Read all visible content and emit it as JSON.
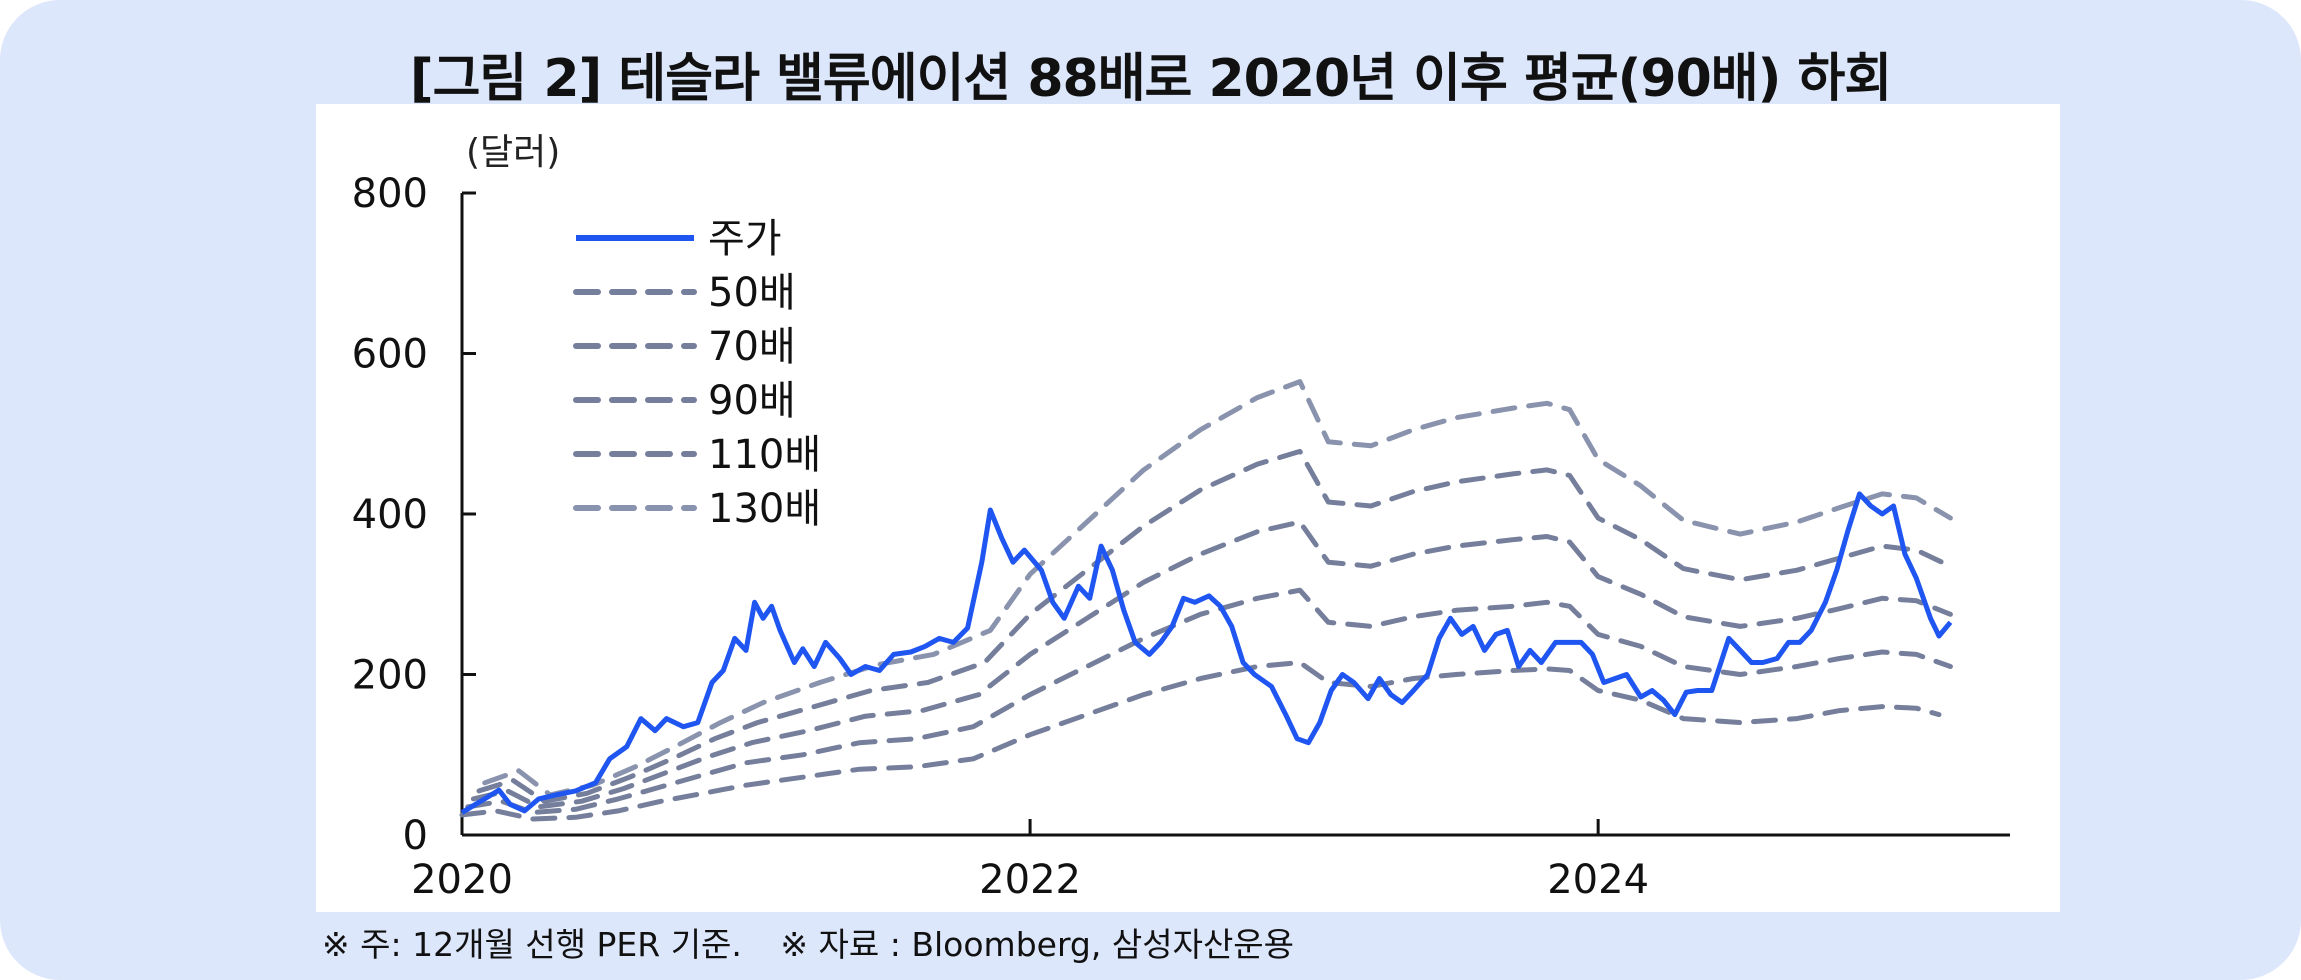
{
  "title": "[그림 2] 테슬라 밸류에이션 88배로 2020년 이후 평균(90배) 하회",
  "footnote": "※ 주: 12개월 선행 PER 기준.",
  "source": "※ 자료 : Bloomberg, 삼성자산운용",
  "chart_data": {
    "type": "line",
    "unit_label": "(달러)",
    "ylim": [
      0,
      800
    ],
    "yticks": [
      0,
      200,
      400,
      600,
      800
    ],
    "xlim": [
      2020,
      2025.45
    ],
    "xticks": [
      2020,
      2022,
      2024
    ],
    "legend_placement": "top-left",
    "series": [
      {
        "name": "주가",
        "style": "solid",
        "color": "#1f55f0",
        "points": [
          [
            2020.0,
            28
          ],
          [
            2020.08,
            45
          ],
          [
            2020.13,
            56
          ],
          [
            2020.17,
            38
          ],
          [
            2020.22,
            30
          ],
          [
            2020.27,
            45
          ],
          [
            2020.33,
            50
          ],
          [
            2020.4,
            55
          ],
          [
            2020.47,
            65
          ],
          [
            2020.52,
            95
          ],
          [
            2020.58,
            110
          ],
          [
            2020.63,
            145
          ],
          [
            2020.68,
            130
          ],
          [
            2020.72,
            145
          ],
          [
            2020.78,
            135
          ],
          [
            2020.83,
            140
          ],
          [
            2020.88,
            190
          ],
          [
            2020.92,
            205
          ],
          [
            2020.96,
            245
          ],
          [
            2021.0,
            230
          ],
          [
            2021.03,
            290
          ],
          [
            2021.06,
            270
          ],
          [
            2021.09,
            285
          ],
          [
            2021.12,
            255
          ],
          [
            2021.17,
            215
          ],
          [
            2021.2,
            232
          ],
          [
            2021.24,
            210
          ],
          [
            2021.28,
            240
          ],
          [
            2021.33,
            220
          ],
          [
            2021.37,
            200
          ],
          [
            2021.42,
            210
          ],
          [
            2021.47,
            205
          ],
          [
            2021.52,
            225
          ],
          [
            2021.58,
            228
          ],
          [
            2021.63,
            235
          ],
          [
            2021.68,
            245
          ],
          [
            2021.73,
            240
          ],
          [
            2021.78,
            258
          ],
          [
            2021.83,
            340
          ],
          [
            2021.86,
            405
          ],
          [
            2021.9,
            370
          ],
          [
            2021.94,
            340
          ],
          [
            2021.98,
            355
          ],
          [
            2022.04,
            330
          ],
          [
            2022.08,
            290
          ],
          [
            2022.12,
            270
          ],
          [
            2022.17,
            310
          ],
          [
            2022.21,
            295
          ],
          [
            2022.25,
            360
          ],
          [
            2022.29,
            330
          ],
          [
            2022.33,
            280
          ],
          [
            2022.37,
            240
          ],
          [
            2022.42,
            225
          ],
          [
            2022.46,
            240
          ],
          [
            2022.5,
            260
          ],
          [
            2022.54,
            295
          ],
          [
            2022.58,
            290
          ],
          [
            2022.63,
            298
          ],
          [
            2022.67,
            285
          ],
          [
            2022.71,
            260
          ],
          [
            2022.75,
            215
          ],
          [
            2022.79,
            200
          ],
          [
            2022.85,
            185
          ],
          [
            2022.9,
            150
          ],
          [
            2022.94,
            120
          ],
          [
            2022.98,
            115
          ],
          [
            2023.02,
            140
          ],
          [
            2023.06,
            180
          ],
          [
            2023.1,
            200
          ],
          [
            2023.14,
            190
          ],
          [
            2023.19,
            170
          ],
          [
            2023.23,
            195
          ],
          [
            2023.27,
            175
          ],
          [
            2023.31,
            165
          ],
          [
            2023.35,
            180
          ],
          [
            2023.4,
            200
          ],
          [
            2023.44,
            245
          ],
          [
            2023.48,
            270
          ],
          [
            2023.52,
            250
          ],
          [
            2023.56,
            260
          ],
          [
            2023.6,
            230
          ],
          [
            2023.64,
            250
          ],
          [
            2023.68,
            255
          ],
          [
            2023.72,
            210
          ],
          [
            2023.76,
            230
          ],
          [
            2023.8,
            215
          ],
          [
            2023.85,
            240
          ],
          [
            2023.9,
            240
          ],
          [
            2023.94,
            240
          ],
          [
            2023.98,
            225
          ],
          [
            2024.02,
            190
          ],
          [
            2024.06,
            195
          ],
          [
            2024.1,
            200
          ],
          [
            2024.15,
            172
          ],
          [
            2024.19,
            180
          ],
          [
            2024.23,
            168
          ],
          [
            2024.27,
            150
          ],
          [
            2024.31,
            178
          ],
          [
            2024.35,
            180
          ],
          [
            2024.4,
            180
          ],
          [
            2024.46,
            245
          ],
          [
            2024.5,
            230
          ],
          [
            2024.54,
            215
          ],
          [
            2024.58,
            215
          ],
          [
            2024.63,
            220
          ],
          [
            2024.67,
            240
          ],
          [
            2024.71,
            240
          ],
          [
            2024.75,
            255
          ],
          [
            2024.8,
            290
          ],
          [
            2024.84,
            330
          ],
          [
            2024.88,
            380
          ],
          [
            2024.92,
            425
          ],
          [
            2024.96,
            410
          ],
          [
            2025.0,
            400
          ],
          [
            2025.04,
            410
          ],
          [
            2025.08,
            350
          ],
          [
            2025.12,
            320
          ],
          [
            2025.17,
            270
          ],
          [
            2025.2,
            248
          ],
          [
            2025.24,
            265
          ]
        ]
      },
      {
        "name": "50배",
        "style": "dashed",
        "color": "#757f9c",
        "points": [
          [
            2020.0,
            25
          ],
          [
            2020.12,
            30
          ],
          [
            2020.25,
            20
          ],
          [
            2020.4,
            22
          ],
          [
            2020.55,
            30
          ],
          [
            2020.7,
            42
          ],
          [
            2020.85,
            52
          ],
          [
            2021.0,
            62
          ],
          [
            2021.2,
            72
          ],
          [
            2021.4,
            82
          ],
          [
            2021.6,
            85
          ],
          [
            2021.8,
            95
          ],
          [
            2022.0,
            125
          ],
          [
            2022.2,
            150
          ],
          [
            2022.4,
            175
          ],
          [
            2022.6,
            195
          ],
          [
            2022.8,
            210
          ],
          [
            2022.95,
            215
          ],
          [
            2023.05,
            190
          ],
          [
            2023.2,
            185
          ],
          [
            2023.35,
            195
          ],
          [
            2023.5,
            200
          ],
          [
            2023.7,
            205
          ],
          [
            2023.82,
            207
          ],
          [
            2023.9,
            205
          ],
          [
            2024.0,
            180
          ],
          [
            2024.15,
            168
          ],
          [
            2024.3,
            145
          ],
          [
            2024.5,
            140
          ],
          [
            2024.7,
            145
          ],
          [
            2024.85,
            155
          ],
          [
            2025.0,
            160
          ],
          [
            2025.12,
            158
          ],
          [
            2025.2,
            150
          ]
        ]
      },
      {
        "name": "70배",
        "style": "dashed",
        "color": "#757f9c",
        "points": [
          [
            2020.02,
            35
          ],
          [
            2020.14,
            42
          ],
          [
            2020.25,
            28
          ],
          [
            2020.4,
            32
          ],
          [
            2020.55,
            45
          ],
          [
            2020.7,
            60
          ],
          [
            2020.85,
            75
          ],
          [
            2021.0,
            90
          ],
          [
            2021.2,
            100
          ],
          [
            2021.4,
            115
          ],
          [
            2021.6,
            120
          ],
          [
            2021.8,
            135
          ],
          [
            2022.0,
            175
          ],
          [
            2022.2,
            210
          ],
          [
            2022.4,
            245
          ],
          [
            2022.6,
            275
          ],
          [
            2022.8,
            295
          ],
          [
            2022.95,
            305
          ],
          [
            2023.05,
            265
          ],
          [
            2023.2,
            260
          ],
          [
            2023.35,
            272
          ],
          [
            2023.5,
            280
          ],
          [
            2023.7,
            285
          ],
          [
            2023.82,
            290
          ],
          [
            2023.9,
            285
          ],
          [
            2024.0,
            250
          ],
          [
            2024.15,
            235
          ],
          [
            2024.3,
            210
          ],
          [
            2024.5,
            200
          ],
          [
            2024.7,
            210
          ],
          [
            2024.85,
            220
          ],
          [
            2025.0,
            228
          ],
          [
            2025.12,
            225
          ],
          [
            2025.24,
            210
          ]
        ]
      },
      {
        "name": "90배",
        "style": "dashed",
        "color": "#757f9c",
        "points": [
          [
            2020.04,
            45
          ],
          [
            2020.16,
            55
          ],
          [
            2020.27,
            35
          ],
          [
            2020.42,
            42
          ],
          [
            2020.57,
            58
          ],
          [
            2020.72,
            78
          ],
          [
            2020.87,
            98
          ],
          [
            2021.02,
            115
          ],
          [
            2021.22,
            130
          ],
          [
            2021.42,
            148
          ],
          [
            2021.62,
            155
          ],
          [
            2021.82,
            175
          ],
          [
            2022.0,
            225
          ],
          [
            2022.2,
            270
          ],
          [
            2022.4,
            315
          ],
          [
            2022.6,
            350
          ],
          [
            2022.8,
            378
          ],
          [
            2022.95,
            390
          ],
          [
            2023.05,
            340
          ],
          [
            2023.2,
            335
          ],
          [
            2023.35,
            350
          ],
          [
            2023.5,
            360
          ],
          [
            2023.7,
            368
          ],
          [
            2023.82,
            372
          ],
          [
            2023.9,
            365
          ],
          [
            2024.0,
            322
          ],
          [
            2024.15,
            300
          ],
          [
            2024.3,
            272
          ],
          [
            2024.5,
            260
          ],
          [
            2024.7,
            270
          ],
          [
            2024.85,
            282
          ],
          [
            2025.0,
            295
          ],
          [
            2025.12,
            292
          ],
          [
            2025.24,
            275
          ]
        ]
      },
      {
        "name": "110배",
        "style": "dashed",
        "color": "#757f9c",
        "points": [
          [
            2020.06,
            55
          ],
          [
            2020.18,
            68
          ],
          [
            2020.29,
            42
          ],
          [
            2020.44,
            52
          ],
          [
            2020.59,
            72
          ],
          [
            2020.74,
            95
          ],
          [
            2020.89,
            120
          ],
          [
            2021.04,
            140
          ],
          [
            2021.24,
            160
          ],
          [
            2021.44,
            180
          ],
          [
            2021.64,
            190
          ],
          [
            2021.84,
            215
          ],
          [
            2022.0,
            275
          ],
          [
            2022.2,
            330
          ],
          [
            2022.4,
            385
          ],
          [
            2022.6,
            430
          ],
          [
            2022.8,
            462
          ],
          [
            2022.95,
            478
          ],
          [
            2023.05,
            415
          ],
          [
            2023.2,
            410
          ],
          [
            2023.35,
            428
          ],
          [
            2023.5,
            440
          ],
          [
            2023.7,
            450
          ],
          [
            2023.82,
            455
          ],
          [
            2023.9,
            448
          ],
          [
            2024.0,
            395
          ],
          [
            2024.15,
            368
          ],
          [
            2024.3,
            332
          ],
          [
            2024.5,
            318
          ],
          [
            2024.7,
            330
          ],
          [
            2024.85,
            345
          ],
          [
            2025.0,
            360
          ],
          [
            2025.12,
            355
          ],
          [
            2025.24,
            335
          ]
        ]
      },
      {
        "name": "130배",
        "style": "dashed",
        "color": "#8a93ad",
        "points": [
          [
            2020.08,
            65
          ],
          [
            2020.2,
            80
          ],
          [
            2020.31,
            50
          ],
          [
            2020.46,
            62
          ],
          [
            2020.61,
            85
          ],
          [
            2020.76,
            112
          ],
          [
            2020.91,
            140
          ],
          [
            2021.06,
            165
          ],
          [
            2021.26,
            190
          ],
          [
            2021.46,
            212
          ],
          [
            2021.66,
            225
          ],
          [
            2021.86,
            255
          ],
          [
            2022.0,
            325
          ],
          [
            2022.2,
            390
          ],
          [
            2022.4,
            455
          ],
          [
            2022.6,
            505
          ],
          [
            2022.8,
            545
          ],
          [
            2022.95,
            565
          ],
          [
            2023.05,
            490
          ],
          [
            2023.2,
            485
          ],
          [
            2023.35,
            505
          ],
          [
            2023.5,
            520
          ],
          [
            2023.7,
            532
          ],
          [
            2023.82,
            538
          ],
          [
            2023.9,
            530
          ],
          [
            2024.0,
            468
          ],
          [
            2024.15,
            435
          ],
          [
            2024.3,
            392
          ],
          [
            2024.5,
            375
          ],
          [
            2024.7,
            390
          ],
          [
            2024.85,
            408
          ],
          [
            2025.0,
            425
          ],
          [
            2025.12,
            420
          ],
          [
            2025.24,
            395
          ]
        ]
      }
    ]
  }
}
